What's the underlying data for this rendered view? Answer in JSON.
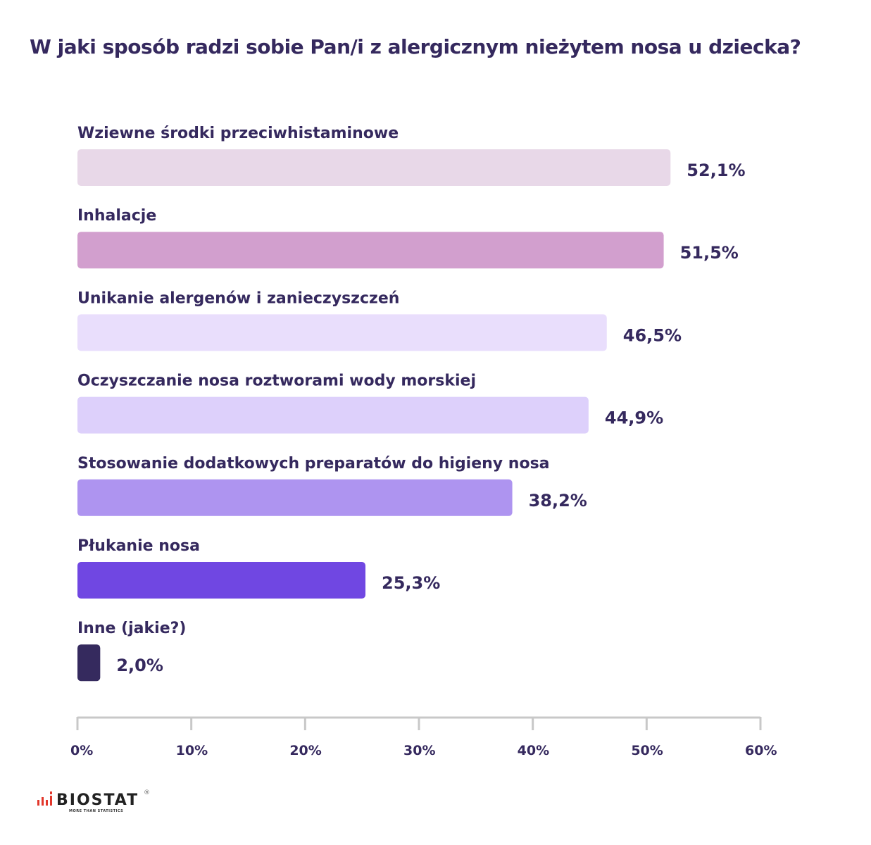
{
  "chart_data": {
    "type": "bar",
    "orientation": "horizontal",
    "title": "W jaki sposób radzi sobie Pan/i z alergicznym nieżytem nosa u dziecka?",
    "categories": [
      "Wziewne środki przeciwhistaminowe",
      "Inhalacje",
      "Unikanie alergenów i zanieczyszczeń",
      "Oczyszczanie nosa roztworami wody morskiej",
      "Stosowanie dodatkowych preparatów do higieny nosa",
      "Płukanie nosa",
      "Inne (jakie?)"
    ],
    "values": [
      52.1,
      51.5,
      46.5,
      44.9,
      38.2,
      25.3,
      2.0
    ],
    "value_labels": [
      "52,1%",
      "51,5%",
      "46,5%",
      "44,9%",
      "38,2%",
      "25,3%",
      "2,0%"
    ],
    "colors": [
      "#e8d8e8",
      "#d29fce",
      "#e9defc",
      "#ddd0fb",
      "#ae94f0",
      "#7047e2",
      "#352a5e"
    ],
    "xlim": [
      0,
      60
    ],
    "x_ticks": [
      "0%",
      "10%",
      "20%",
      "30%",
      "40%",
      "50%",
      "60%"
    ],
    "grid": false,
    "legend": "none"
  },
  "logo": {
    "name": "BIOSTAT",
    "tagline": "MORE THAN STATISTICS",
    "reg": "®"
  }
}
